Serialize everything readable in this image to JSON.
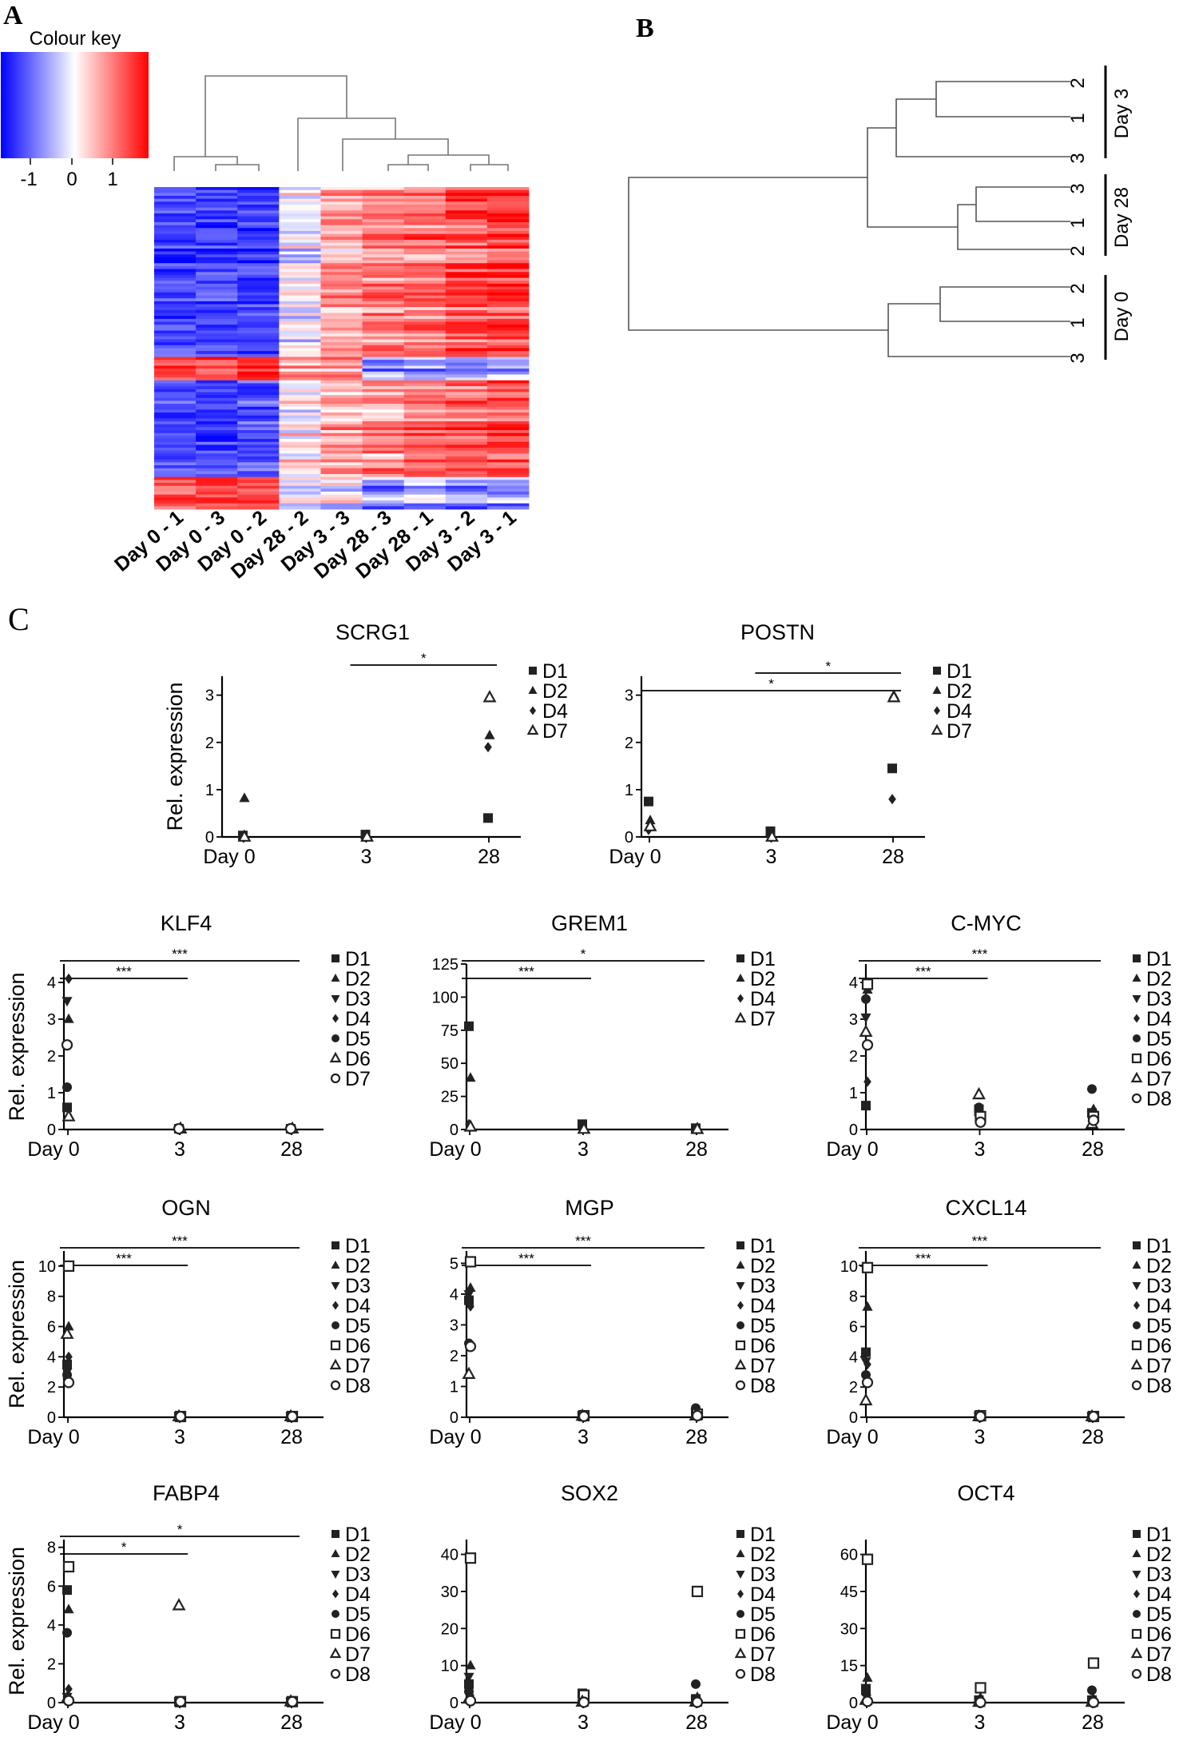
{
  "panels": {
    "a": "A",
    "b": "B",
    "c": "C"
  },
  "colour_key": {
    "title": "Colour key",
    "ticks": [
      "-1",
      "0",
      "1"
    ],
    "colors": {
      "low": "#0000ff",
      "mid": "#ffffff",
      "high": "#ff0000"
    }
  },
  "heatmap": {
    "columns": [
      "Day 0 - 1",
      "Day 0 - 3",
      "Day 0 - 2",
      "Day 28 - 2",
      "Day 3 - 3",
      "Day 28 - 3",
      "Day 28 - 1",
      "Day 3 - 2",
      "Day 3 - 1"
    ]
  },
  "dendrogram_b": {
    "groups": [
      {
        "label": "Day 3",
        "leaves": [
          "2",
          "1",
          "3"
        ]
      },
      {
        "label": "Day 28",
        "leaves": [
          "3",
          "1",
          "2"
        ]
      },
      {
        "label": "Day 0",
        "leaves": [
          "2",
          "1",
          "3"
        ]
      }
    ]
  },
  "y_label": "Rel. expression",
  "x_categories": [
    "Day 0",
    "3",
    "28"
  ],
  "chart_data": [
    {
      "type": "scatter",
      "title": "SCRG1",
      "categories": [
        "Day 0",
        "3",
        "28"
      ],
      "ylim": [
        0,
        3.4
      ],
      "yticks": [
        "0",
        "1",
        "2",
        "3"
      ],
      "legend": [
        "D1",
        "D2",
        "D4",
        "D7"
      ],
      "series": [
        {
          "name": "D1",
          "marker": "square",
          "values": [
            0.03,
            0.05,
            0.4
          ]
        },
        {
          "name": "D2",
          "marker": "triangle",
          "values": [
            0.82,
            0.0,
            2.15
          ]
        },
        {
          "name": "D4",
          "marker": "diamond",
          "values": [
            0.0,
            0.0,
            1.9
          ]
        },
        {
          "name": "D7",
          "marker": "open-triangle",
          "values": [
            0.0,
            0.0,
            2.95
          ]
        }
      ],
      "significance": [
        {
          "from": 1,
          "to": 2,
          "label": "*"
        }
      ]
    },
    {
      "type": "scatter",
      "title": "POSTN",
      "categories": [
        "Day 0",
        "3",
        "28"
      ],
      "ylim": [
        0,
        3.4
      ],
      "yticks": [
        "0",
        "1",
        "2",
        "3"
      ],
      "legend": [
        "D1",
        "D2",
        "D4",
        "D7"
      ],
      "series": [
        {
          "name": "D1",
          "marker": "square",
          "values": [
            0.75,
            0.12,
            1.45
          ]
        },
        {
          "name": "D2",
          "marker": "triangle",
          "values": [
            0.35,
            0.02,
            3.0
          ]
        },
        {
          "name": "D4",
          "marker": "diamond",
          "values": [
            0.15,
            0.01,
            0.8
          ]
        },
        {
          "name": "D7",
          "marker": "open-triangle",
          "values": [
            0.22,
            0.0,
            2.95
          ]
        }
      ],
      "significance": [
        {
          "from": 0,
          "to": 2,
          "label": "*"
        },
        {
          "from": 1,
          "to": 2,
          "label": "*"
        }
      ]
    },
    {
      "type": "scatter",
      "title": "KLF4",
      "categories": [
        "Day 0",
        "3",
        "28"
      ],
      "ylim": [
        0,
        4.5
      ],
      "yticks": [
        "0",
        "1",
        "2",
        "3",
        "4"
      ],
      "legend": [
        "D1",
        "D2",
        "D3",
        "D4",
        "D5",
        "D6",
        "D7"
      ],
      "series": [
        {
          "name": "D1",
          "marker": "square",
          "values": [
            0.6,
            0.02,
            0.02
          ]
        },
        {
          "name": "D2",
          "marker": "triangle",
          "values": [
            3.0,
            0.02,
            0.02
          ]
        },
        {
          "name": "D3",
          "marker": "tri-down",
          "values": [
            3.5,
            0.02,
            0.02
          ]
        },
        {
          "name": "D4",
          "marker": "diamond",
          "values": [
            4.1,
            0.02,
            0.02
          ]
        },
        {
          "name": "D5",
          "marker": "circle",
          "values": [
            1.15,
            0.02,
            0.02
          ]
        },
        {
          "name": "D6",
          "marker": "open-triangle",
          "values": [
            0.35,
            0.02,
            0.02
          ]
        },
        {
          "name": "D7",
          "marker": "open-circle",
          "values": [
            2.3,
            0.02,
            0.02
          ]
        }
      ],
      "significance": [
        {
          "from": 0,
          "to": 1,
          "label": "***"
        },
        {
          "from": 0,
          "to": 2,
          "label": "***"
        }
      ]
    },
    {
      "type": "scatter",
      "title": "GREM1",
      "categories": [
        "Day 0",
        "3",
        "28"
      ],
      "ylim": [
        0,
        125
      ],
      "yticks": [
        "0",
        "25",
        "50",
        "75",
        "100",
        "125"
      ],
      "legend": [
        "D1",
        "D2",
        "D4",
        "D7"
      ],
      "series": [
        {
          "name": "D1",
          "marker": "square",
          "values": [
            78,
            4,
            1
          ]
        },
        {
          "name": "D2",
          "marker": "triangle",
          "values": [
            39,
            1,
            0.5
          ]
        },
        {
          "name": "D4",
          "marker": "diamond",
          "values": [
            4,
            0.5,
            0.3
          ]
        },
        {
          "name": "D7",
          "marker": "open-triangle",
          "values": [
            2,
            0.3,
            0.2
          ]
        }
      ],
      "significance": [
        {
          "from": 0,
          "to": 1,
          "label": "***"
        },
        {
          "from": 0,
          "to": 2,
          "label": "*"
        }
      ]
    },
    {
      "type": "scatter",
      "title": "C-MYC",
      "categories": [
        "Day 0",
        "3",
        "28"
      ],
      "ylim": [
        0,
        4.5
      ],
      "yticks": [
        "0",
        "1",
        "2",
        "3",
        "4"
      ],
      "legend": [
        "D1",
        "D2",
        "D3",
        "D4",
        "D5",
        "D6",
        "D7",
        "D8"
      ],
      "series": [
        {
          "name": "D1",
          "marker": "square",
          "values": [
            0.65,
            0.55,
            0.45
          ]
        },
        {
          "name": "D2",
          "marker": "triangle",
          "values": [
            3.8,
            0.45,
            0.55
          ]
        },
        {
          "name": "D3",
          "marker": "tri-down",
          "values": [
            3.05,
            0.3,
            0.4
          ]
        },
        {
          "name": "D4",
          "marker": "diamond",
          "values": [
            1.3,
            0.25,
            0.3
          ]
        },
        {
          "name": "D5",
          "marker": "circle",
          "values": [
            3.55,
            0.6,
            1.1
          ]
        },
        {
          "name": "D6",
          "marker": "open-square",
          "values": [
            3.95,
            0.35,
            0.35
          ]
        },
        {
          "name": "D7",
          "marker": "open-triangle",
          "values": [
            2.65,
            0.95,
            0.15
          ]
        },
        {
          "name": "D8",
          "marker": "open-circle",
          "values": [
            2.3,
            0.2,
            0.25
          ]
        }
      ],
      "significance": [
        {
          "from": 0,
          "to": 1,
          "label": "***"
        },
        {
          "from": 0,
          "to": 2,
          "label": "***"
        }
      ]
    },
    {
      "type": "scatter",
      "title": "OGN",
      "categories": [
        "Day 0",
        "3",
        "28"
      ],
      "ylim": [
        0,
        11
      ],
      "yticks": [
        "0",
        "2",
        "4",
        "6",
        "8",
        "10"
      ],
      "legend": [
        "D1",
        "D2",
        "D3",
        "D4",
        "D5",
        "D6",
        "D7",
        "D8"
      ],
      "series": [
        {
          "name": "D1",
          "marker": "square",
          "values": [
            3.5,
            0.05,
            0.05
          ]
        },
        {
          "name": "D2",
          "marker": "triangle",
          "values": [
            6.0,
            0.05,
            0.05
          ]
        },
        {
          "name": "D3",
          "marker": "tri-down",
          "values": [
            3.0,
            0.05,
            0.05
          ]
        },
        {
          "name": "D4",
          "marker": "diamond",
          "values": [
            4.0,
            0.05,
            0.05
          ]
        },
        {
          "name": "D5",
          "marker": "circle",
          "values": [
            2.8,
            0.05,
            0.05
          ]
        },
        {
          "name": "D6",
          "marker": "open-square",
          "values": [
            10.0,
            0.05,
            0.05
          ]
        },
        {
          "name": "D7",
          "marker": "open-triangle",
          "values": [
            5.5,
            0.05,
            0.05
          ]
        },
        {
          "name": "D8",
          "marker": "open-circle",
          "values": [
            2.3,
            0.05,
            0.05
          ]
        }
      ],
      "significance": [
        {
          "from": 0,
          "to": 1,
          "label": "***"
        },
        {
          "from": 0,
          "to": 2,
          "label": "***"
        }
      ]
    },
    {
      "type": "scatter",
      "title": "MGP",
      "categories": [
        "Day 0",
        "3",
        "28"
      ],
      "ylim": [
        0,
        5.4
      ],
      "yticks": [
        "0",
        "1",
        "2",
        "3",
        "4",
        "5"
      ],
      "legend": [
        "D1",
        "D2",
        "D3",
        "D4",
        "D5",
        "D6",
        "D7",
        "D8"
      ],
      "series": [
        {
          "name": "D1",
          "marker": "square",
          "values": [
            3.8,
            0.05,
            0.1
          ]
        },
        {
          "name": "D2",
          "marker": "triangle",
          "values": [
            4.2,
            0.04,
            0.2
          ]
        },
        {
          "name": "D3",
          "marker": "tri-down",
          "values": [
            4.0,
            0.03,
            0.15
          ]
        },
        {
          "name": "D4",
          "marker": "diamond",
          "values": [
            3.6,
            0.03,
            0.1
          ]
        },
        {
          "name": "D5",
          "marker": "circle",
          "values": [
            2.4,
            0.05,
            0.3
          ]
        },
        {
          "name": "D6",
          "marker": "open-square",
          "values": [
            5.05,
            0.05,
            0.1
          ]
        },
        {
          "name": "D7",
          "marker": "open-triangle",
          "values": [
            1.4,
            0.04,
            0.05
          ]
        },
        {
          "name": "D8",
          "marker": "open-circle",
          "values": [
            2.3,
            0.03,
            0.05
          ]
        }
      ],
      "significance": [
        {
          "from": 0,
          "to": 1,
          "label": "***"
        },
        {
          "from": 0,
          "to": 2,
          "label": "***"
        }
      ]
    },
    {
      "type": "scatter",
      "title": "CXCL14",
      "categories": [
        "Day 0",
        "3",
        "28"
      ],
      "ylim": [
        0,
        11
      ],
      "yticks": [
        "0",
        "2",
        "4",
        "6",
        "8",
        "10"
      ],
      "legend": [
        "D1",
        "D2",
        "D3",
        "D4",
        "D5",
        "D6",
        "D7",
        "D8"
      ],
      "series": [
        {
          "name": "D1",
          "marker": "square",
          "values": [
            4.3,
            0.1,
            0.05
          ]
        },
        {
          "name": "D2",
          "marker": "triangle",
          "values": [
            7.3,
            0.05,
            0.05
          ]
        },
        {
          "name": "D3",
          "marker": "tri-down",
          "values": [
            3.7,
            0.05,
            0.05
          ]
        },
        {
          "name": "D4",
          "marker": "diamond",
          "values": [
            3.5,
            0.05,
            0.05
          ]
        },
        {
          "name": "D5",
          "marker": "circle",
          "values": [
            2.8,
            0.05,
            0.05
          ]
        },
        {
          "name": "D6",
          "marker": "open-square",
          "values": [
            9.9,
            0.1,
            0.05
          ]
        },
        {
          "name": "D7",
          "marker": "open-triangle",
          "values": [
            1.1,
            0.05,
            0.05
          ]
        },
        {
          "name": "D8",
          "marker": "open-circle",
          "values": [
            2.3,
            0.05,
            0.05
          ]
        }
      ],
      "significance": [
        {
          "from": 0,
          "to": 1,
          "label": "***"
        },
        {
          "from": 0,
          "to": 2,
          "label": "***"
        }
      ]
    },
    {
      "type": "scatter",
      "title": "FABP4",
      "categories": [
        "Day 0",
        "3",
        "28"
      ],
      "ylim": [
        0,
        8.4
      ],
      "yticks": [
        "0",
        "2",
        "4",
        "6",
        "8"
      ],
      "legend": [
        "D1",
        "D2",
        "D3",
        "D4",
        "D5",
        "D6",
        "D7",
        "D8"
      ],
      "series": [
        {
          "name": "D1",
          "marker": "square",
          "values": [
            5.8,
            0.05,
            0.05
          ]
        },
        {
          "name": "D2",
          "marker": "triangle",
          "values": [
            4.8,
            0.05,
            0.05
          ]
        },
        {
          "name": "D3",
          "marker": "tri-down",
          "values": [
            0.3,
            0.05,
            0.05
          ]
        },
        {
          "name": "D4",
          "marker": "diamond",
          "values": [
            0.7,
            0.05,
            0.05
          ]
        },
        {
          "name": "D5",
          "marker": "circle",
          "values": [
            3.6,
            0.05,
            0.05
          ]
        },
        {
          "name": "D6",
          "marker": "open-square",
          "values": [
            7.0,
            0.05,
            0.05
          ]
        },
        {
          "name": "D7",
          "marker": "open-triangle",
          "values": [
            0.2,
            5.0,
            0.05
          ]
        },
        {
          "name": "D8",
          "marker": "open-circle",
          "values": [
            0.1,
            0.05,
            0.05
          ]
        }
      ],
      "significance": [
        {
          "from": 0,
          "to": 1,
          "label": "*"
        },
        {
          "from": 0,
          "to": 2,
          "label": "*"
        }
      ]
    },
    {
      "type": "scatter",
      "title": "SOX2",
      "categories": [
        "Day 0",
        "3",
        "28"
      ],
      "ylim": [
        0,
        44
      ],
      "yticks": [
        "0",
        "10",
        "20",
        "30",
        "40"
      ],
      "legend": [
        "D1",
        "D2",
        "D3",
        "D4",
        "D5",
        "D6",
        "D7",
        "D8"
      ],
      "series": [
        {
          "name": "D1",
          "marker": "square",
          "values": [
            5,
            2.5,
            1
          ]
        },
        {
          "name": "D2",
          "marker": "triangle",
          "values": [
            10,
            1,
            1.5
          ]
        },
        {
          "name": "D3",
          "marker": "tri-down",
          "values": [
            7,
            0.5,
            0.5
          ]
        },
        {
          "name": "D4",
          "marker": "diamond",
          "values": [
            2,
            0.3,
            0.3
          ]
        },
        {
          "name": "D5",
          "marker": "circle",
          "values": [
            3,
            0.5,
            5
          ]
        },
        {
          "name": "D6",
          "marker": "open-square",
          "values": [
            39,
            2,
            30
          ]
        },
        {
          "name": "D7",
          "marker": "open-triangle",
          "values": [
            1,
            0.2,
            0.2
          ]
        },
        {
          "name": "D8",
          "marker": "open-circle",
          "values": [
            0.5,
            0.1,
            0.1
          ]
        }
      ],
      "significance": []
    },
    {
      "type": "scatter",
      "title": "OCT4",
      "categories": [
        "Day 0",
        "3",
        "28"
      ],
      "ylim": [
        0,
        66
      ],
      "yticks": [
        "0",
        "15",
        "30",
        "45",
        "60"
      ],
      "legend": [
        "D1",
        "D2",
        "D3",
        "D4",
        "D5",
        "D6",
        "D7",
        "D8"
      ],
      "series": [
        {
          "name": "D1",
          "marker": "square",
          "values": [
            5,
            1,
            1
          ]
        },
        {
          "name": "D2",
          "marker": "triangle",
          "values": [
            10,
            2,
            1.5
          ]
        },
        {
          "name": "D3",
          "marker": "tri-down",
          "values": [
            6,
            0.5,
            0.5
          ]
        },
        {
          "name": "D4",
          "marker": "diamond",
          "values": [
            3,
            0.3,
            0.3
          ]
        },
        {
          "name": "D5",
          "marker": "circle",
          "values": [
            4,
            0.5,
            5
          ]
        },
        {
          "name": "D6",
          "marker": "open-square",
          "values": [
            58,
            6,
            16
          ]
        },
        {
          "name": "D7",
          "marker": "open-triangle",
          "values": [
            1,
            0.2,
            0.2
          ]
        },
        {
          "name": "D8",
          "marker": "open-circle",
          "values": [
            0.5,
            0.1,
            0.1
          ]
        }
      ],
      "significance": []
    }
  ]
}
